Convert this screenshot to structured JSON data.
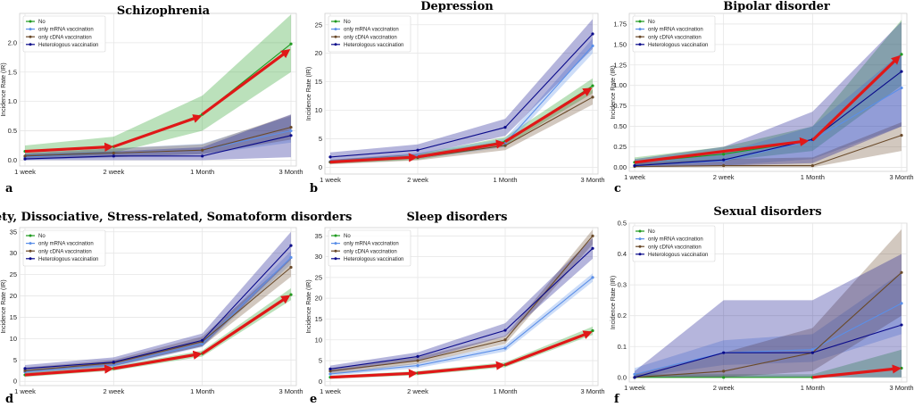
{
  "colors": {
    "No": "#1f9a1f",
    "only mRNA vaccination": "#5b8fe8",
    "only cDNA vaccination": "#6a4a2a",
    "Heterologous vaccination": "#0a0a8a",
    "arrow": "#e01818"
  },
  "legend_labels": [
    "No",
    "only mRNA vaccination",
    "only cDNA vaccination",
    "Heterologous vaccination"
  ],
  "chart_data": [
    {
      "type": "line",
      "panel_label": "a",
      "title": "Schizophrenia",
      "ylabel": "Incidence Rate (IR)",
      "categories": [
        "1 week",
        "2 week",
        "1 Month",
        "3 Month"
      ],
      "ylim": [
        -0.1,
        2.5
      ],
      "yticks": [
        "0.0",
        "0.5",
        "1.0",
        "1.5",
        "2.0"
      ],
      "ytick_values": [
        0,
        0.5,
        1.0,
        1.5,
        2.0
      ],
      "legend_position": "top-left",
      "series": [
        {
          "name": "No",
          "values": [
            0.15,
            0.23,
            0.78,
            1.98
          ],
          "lower": [
            0.08,
            0.12,
            0.5,
            1.5
          ],
          "upper": [
            0.25,
            0.4,
            1.1,
            2.48
          ]
        },
        {
          "name": "only mRNA vaccination",
          "values": [
            0.05,
            0.12,
            0.17,
            0.5
          ],
          "lower": [
            0.0,
            0.05,
            0.1,
            0.3
          ],
          "upper": [
            0.12,
            0.2,
            0.28,
            0.75
          ]
        },
        {
          "name": "only cDNA vaccination",
          "values": [
            0.07,
            0.12,
            0.17,
            0.56
          ],
          "lower": [
            0.02,
            0.05,
            0.1,
            0.35
          ],
          "upper": [
            0.12,
            0.2,
            0.27,
            0.77
          ]
        },
        {
          "name": "Heterologous vaccination",
          "values": [
            0.02,
            0.07,
            0.07,
            0.42
          ],
          "lower": [
            0.0,
            0.0,
            0.0,
            0.05
          ],
          "upper": [
            0.1,
            0.15,
            0.22,
            0.78
          ]
        }
      ],
      "arrows": [
        [
          0,
          0.15,
          1,
          0.23
        ],
        [
          1,
          0.23,
          2,
          0.76
        ],
        [
          2,
          0.78,
          3,
          1.9
        ]
      ]
    },
    {
      "type": "line",
      "panel_label": "b",
      "title": "Depression",
      "ylabel": "Incidence Rate (IR)",
      "categories": [
        "1 week",
        "2 week",
        "1 Month",
        "3 Month"
      ],
      "ylim": [
        -1.2,
        27
      ],
      "yticks": [
        "0",
        "5",
        "10",
        "15",
        "20",
        "25"
      ],
      "ytick_values": [
        0,
        5,
        10,
        15,
        20,
        25
      ],
      "legend_position": "top-left",
      "series": [
        {
          "name": "No",
          "values": [
            0.9,
            1.8,
            4.5,
            14.3
          ],
          "lower": [
            0.6,
            1.3,
            3.8,
            13.0
          ],
          "upper": [
            1.2,
            2.3,
            5.3,
            15.6
          ]
        },
        {
          "name": "only mRNA vaccination",
          "values": [
            1.0,
            2.0,
            4.2,
            21.3
          ],
          "lower": [
            0.7,
            1.5,
            3.5,
            20.0
          ],
          "upper": [
            1.3,
            2.5,
            5.0,
            22.6
          ]
        },
        {
          "name": "only cDNA vaccination",
          "values": [
            0.9,
            1.7,
            3.8,
            12.3
          ],
          "lower": [
            0.5,
            1.2,
            3.0,
            11.0
          ],
          "upper": [
            1.3,
            2.3,
            4.6,
            13.6
          ]
        },
        {
          "name": "Heterologous vaccination",
          "values": [
            1.8,
            3.0,
            7.0,
            23.4
          ],
          "lower": [
            1.0,
            2.2,
            5.5,
            20.8
          ],
          "upper": [
            2.6,
            4.0,
            8.5,
            26.0
          ]
        }
      ],
      "arrows": [
        [
          0,
          0.9,
          1,
          1.8
        ],
        [
          1,
          1.8,
          2,
          4.3
        ],
        [
          2,
          4.5,
          3,
          14.0
        ]
      ]
    },
    {
      "type": "line",
      "panel_label": "c",
      "title": "Bipolar disorder",
      "ylabel": "Incidence Rate (IR)",
      "categories": [
        "1 week",
        "2 week",
        "1 Month",
        "3 Month"
      ],
      "ylim": [
        -0.05,
        1.88
      ],
      "yticks": [
        "0.00",
        "0.25",
        "0.50",
        "0.75",
        "1.00",
        "1.25",
        "1.50",
        "1.75"
      ],
      "ytick_values": [
        0,
        0.25,
        0.5,
        0.75,
        1.0,
        1.25,
        1.5,
        1.75
      ],
      "legend_position": "top-left",
      "series": [
        {
          "name": "No",
          "values": [
            0.06,
            0.16,
            0.33,
            1.38
          ],
          "lower": [
            0.02,
            0.08,
            0.2,
            1.0
          ],
          "upper": [
            0.12,
            0.25,
            0.5,
            1.8
          ]
        },
        {
          "name": "only mRNA vaccination",
          "values": [
            0.02,
            0.08,
            0.33,
            0.97
          ],
          "lower": [
            0.0,
            0.02,
            0.1,
            0.5
          ],
          "upper": [
            0.08,
            0.18,
            0.5,
            1.4
          ]
        },
        {
          "name": "only cDNA vaccination",
          "values": [
            0.01,
            0.02,
            0.02,
            0.39
          ],
          "lower": [
            0.0,
            0.0,
            0.0,
            0.2
          ],
          "upper": [
            0.05,
            0.1,
            0.12,
            0.55
          ]
        },
        {
          "name": "Heterologous vaccination",
          "values": [
            0.02,
            0.09,
            0.34,
            1.17
          ],
          "lower": [
            0.0,
            0.02,
            0.05,
            0.5
          ],
          "upper": [
            0.1,
            0.25,
            0.68,
            1.78
          ]
        }
      ],
      "arrows": [
        [
          0,
          0.06,
          2,
          0.33
        ],
        [
          2,
          0.33,
          3,
          1.38
        ]
      ]
    },
    {
      "type": "line",
      "panel_label": "d",
      "title": "Anxiety, Dissociative, Stress-related, Somatoform disorders",
      "ylabel": "Incidence Rate (IR)",
      "categories": [
        "1 week",
        "2 week",
        "1 Month",
        "3 Month"
      ],
      "ylim": [
        -1,
        36
      ],
      "yticks": [
        "0",
        "5",
        "10",
        "15",
        "20",
        "25",
        "30",
        "35"
      ],
      "ytick_values": [
        0,
        5,
        10,
        15,
        20,
        25,
        30,
        35
      ],
      "legend_position": "top-left",
      "series": [
        {
          "name": "No",
          "values": [
            1.5,
            3.0,
            6.5,
            20.3
          ],
          "lower": [
            1.0,
            2.5,
            5.8,
            19.0
          ],
          "upper": [
            2.0,
            3.5,
            7.2,
            21.8
          ]
        },
        {
          "name": "only mRNA vaccination",
          "values": [
            2.2,
            3.8,
            8.8,
            29.0
          ],
          "lower": [
            1.7,
            3.2,
            8.0,
            27.5
          ],
          "upper": [
            2.7,
            4.4,
            9.6,
            30.5
          ]
        },
        {
          "name": "only cDNA vaccination",
          "values": [
            2.5,
            4.3,
            9.3,
            26.7
          ],
          "lower": [
            1.8,
            3.5,
            8.2,
            24.5
          ],
          "upper": [
            3.2,
            5.0,
            10.5,
            28.8
          ]
        },
        {
          "name": "Heterologous vaccination",
          "values": [
            3.0,
            4.5,
            9.6,
            31.8
          ],
          "lower": [
            2.2,
            3.6,
            8.2,
            28.5
          ],
          "upper": [
            3.8,
            5.6,
            11.2,
            35.0
          ]
        }
      ],
      "arrows": [
        [
          0,
          1.5,
          1,
          3.0
        ],
        [
          1,
          3.0,
          2,
          6.5
        ],
        [
          2,
          6.5,
          3,
          20.3
        ]
      ]
    },
    {
      "type": "line",
      "panel_label": "e",
      "title": "Sleep disorders",
      "ylabel": "Incidence Rate (IR)",
      "categories": [
        "1 week",
        "2 week",
        "1 Month",
        "3 Month"
      ],
      "ylim": [
        -1,
        37
      ],
      "yticks": [
        "0",
        "5",
        "10",
        "15",
        "20",
        "25",
        "30",
        "35"
      ],
      "ytick_values": [
        0,
        5,
        10,
        15,
        20,
        25,
        30,
        35
      ],
      "legend_position": "top-left",
      "series": [
        {
          "name": "No",
          "values": [
            1.0,
            2.0,
            4.0,
            12.2
          ],
          "lower": [
            0.6,
            1.5,
            3.4,
            11.2
          ],
          "upper": [
            1.4,
            2.5,
            4.6,
            13.2
          ]
        },
        {
          "name": "only mRNA vaccination",
          "values": [
            1.8,
            3.8,
            8.0,
            25.0
          ],
          "lower": [
            1.4,
            3.2,
            7.2,
            24.0
          ],
          "upper": [
            2.2,
            4.4,
            8.8,
            26.0
          ]
        },
        {
          "name": "only cDNA vaccination",
          "values": [
            2.5,
            5.0,
            10.0,
            35.0
          ],
          "lower": [
            1.8,
            4.2,
            9.0,
            33.0
          ],
          "upper": [
            3.2,
            5.8,
            11.0,
            36.5
          ]
        },
        {
          "name": "Heterologous vaccination",
          "values": [
            3.0,
            6.0,
            12.3,
            32.0
          ],
          "lower": [
            2.2,
            5.0,
            10.8,
            29.5
          ],
          "upper": [
            3.8,
            7.0,
            14.0,
            34.5
          ]
        }
      ],
      "arrows": [
        [
          0,
          1.0,
          1,
          2.0
        ],
        [
          1,
          2.0,
          2,
          4.0
        ],
        [
          2,
          4.0,
          3,
          12.0
        ]
      ]
    },
    {
      "type": "line",
      "panel_label": "f",
      "title": "Sexual disorders",
      "ylabel": "Incidence Rate (IR)",
      "categories": [
        "1 week",
        "2 week",
        "1 Month",
        "3 Month"
      ],
      "ylim": [
        -0.015,
        0.5
      ],
      "yticks": [
        "0.0",
        "0.1",
        "0.2",
        "0.3",
        "0.4",
        "0.5"
      ],
      "ytick_values": [
        0,
        0.1,
        0.2,
        0.3,
        0.4,
        0.5
      ],
      "legend_position": "top-left",
      "series": [
        {
          "name": "No",
          "values": [
            0.0,
            0.0,
            0.0,
            0.03
          ],
          "lower": [
            0.0,
            0.0,
            0.0,
            0.0
          ],
          "upper": [
            0.01,
            0.01,
            0.01,
            0.09
          ]
        },
        {
          "name": "only mRNA vaccination",
          "values": [
            0.01,
            0.08,
            0.09,
            0.24
          ],
          "lower": [
            0.0,
            0.04,
            0.05,
            0.14
          ],
          "upper": [
            0.03,
            0.12,
            0.14,
            0.34
          ]
        },
        {
          "name": "only cDNA vaccination",
          "values": [
            0.0,
            0.02,
            0.08,
            0.34
          ],
          "lower": [
            0.0,
            0.0,
            0.02,
            0.2
          ],
          "upper": [
            0.01,
            0.08,
            0.16,
            0.48
          ]
        },
        {
          "name": "Heterologous vaccination",
          "values": [
            0.0,
            0.08,
            0.08,
            0.17
          ],
          "lower": [
            0.0,
            0.0,
            0.0,
            0.0
          ],
          "upper": [
            0.02,
            0.25,
            0.25,
            0.4
          ]
        }
      ],
      "arrows": [
        [
          2,
          0.0,
          3,
          0.03
        ]
      ]
    }
  ]
}
